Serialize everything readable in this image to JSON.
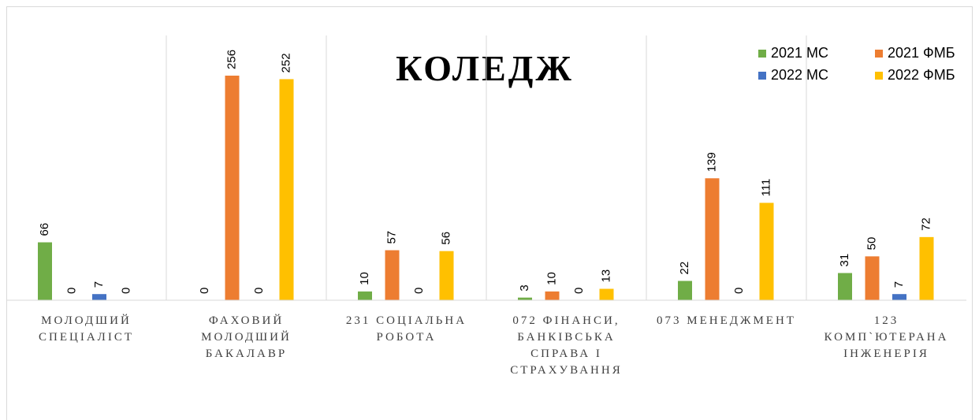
{
  "chart_data": {
    "type": "bar",
    "title": "КОЛЕДЖ",
    "categories": [
      "МОЛОДШИЙ СПЕЦІАЛІСТ",
      "ФАХОВИЙ МОЛОДШИЙ БАКАЛАВР",
      "231 СОЦІАЛЬНА РОБОТА",
      "072 ФІНАНСИ, БАНКІВСЬКА СПРАВА І СТРАХУВАННЯ",
      "073 МЕНЕДЖМЕНТ",
      "123 КОМП`ЮТЕРАНА ІНЖЕНЕРІЯ"
    ],
    "series": [
      {
        "name": "2021 МС",
        "color": "#70ad47",
        "values": [
          66,
          0,
          10,
          3,
          22,
          31
        ]
      },
      {
        "name": "2021 ФМБ",
        "color": "#ed7d31",
        "values": [
          0,
          256,
          57,
          10,
          139,
          50
        ]
      },
      {
        "name": "2022 МС",
        "color": "#4472c4",
        "values": [
          7,
          0,
          0,
          0,
          0,
          7
        ]
      },
      {
        "name": "2022 ФМБ",
        "color": "#ffc000",
        "values": [
          0,
          252,
          56,
          13,
          111,
          72
        ]
      }
    ],
    "ylim": [
      0,
      300
    ],
    "legend": "top-right"
  }
}
